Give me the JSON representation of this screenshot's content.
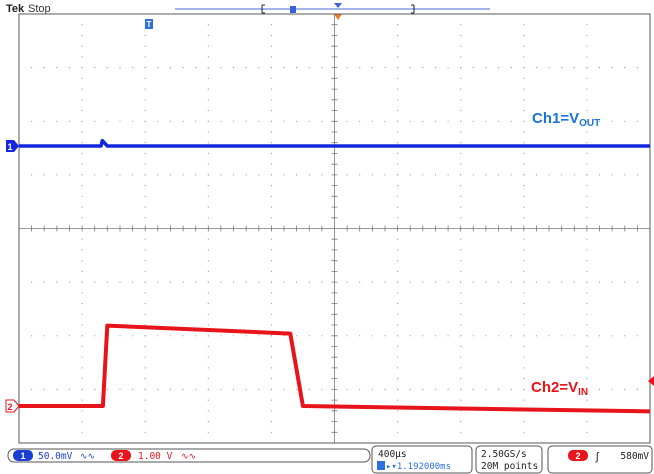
{
  "header": {
    "brand": "Tek",
    "state": "Stop"
  },
  "channel_labels": {
    "ch1_prefix": "Ch1=V",
    "ch1_sub": "OUT",
    "ch2_prefix": "Ch2=V",
    "ch2_sub": "IN"
  },
  "markers": {
    "trigger_glyph": "T",
    "ch1_ground": "1",
    "ch2_ground": "2"
  },
  "status_bar": {
    "ch1_num": "1",
    "ch1_scale": "50.0mV",
    "ch1_bw": "∿∿",
    "ch2_num": "2",
    "ch2_scale": "1.00 V",
    "ch2_bw": "∿∿",
    "timebase": "400µs",
    "trigger_delay": "▸▾1.192000ms",
    "sample_rate": "2.50GS/s",
    "record_length": "20M points",
    "trigger_source": "2",
    "trigger_slope": "ʃ",
    "trigger_level": "580mV"
  },
  "colors": {
    "ch1": "#1428e0",
    "ch2": "#e8141c",
    "ch1_label": "#1a74d8",
    "ch2_label": "#e81418",
    "grid": "#9a9a9a",
    "frame": "#5a5a5a"
  },
  "chart_data": {
    "type": "line",
    "x_divisions": 10,
    "y_divisions": 8,
    "series": [
      {
        "name": "Ch1=VOUT",
        "x": [
          0,
          1.3,
          1.32,
          1.4,
          10
        ],
        "y": [
          0.0,
          0.0,
          0.1,
          0.0,
          0.0
        ]
      },
      {
        "name": "Ch2=VIN",
        "x": [
          0,
          1.33,
          1.4,
          4.3,
          4.5,
          10
        ],
        "y": [
          0.0,
          0.0,
          1.5,
          1.35,
          0.0,
          -0.1
        ]
      }
    ]
  }
}
